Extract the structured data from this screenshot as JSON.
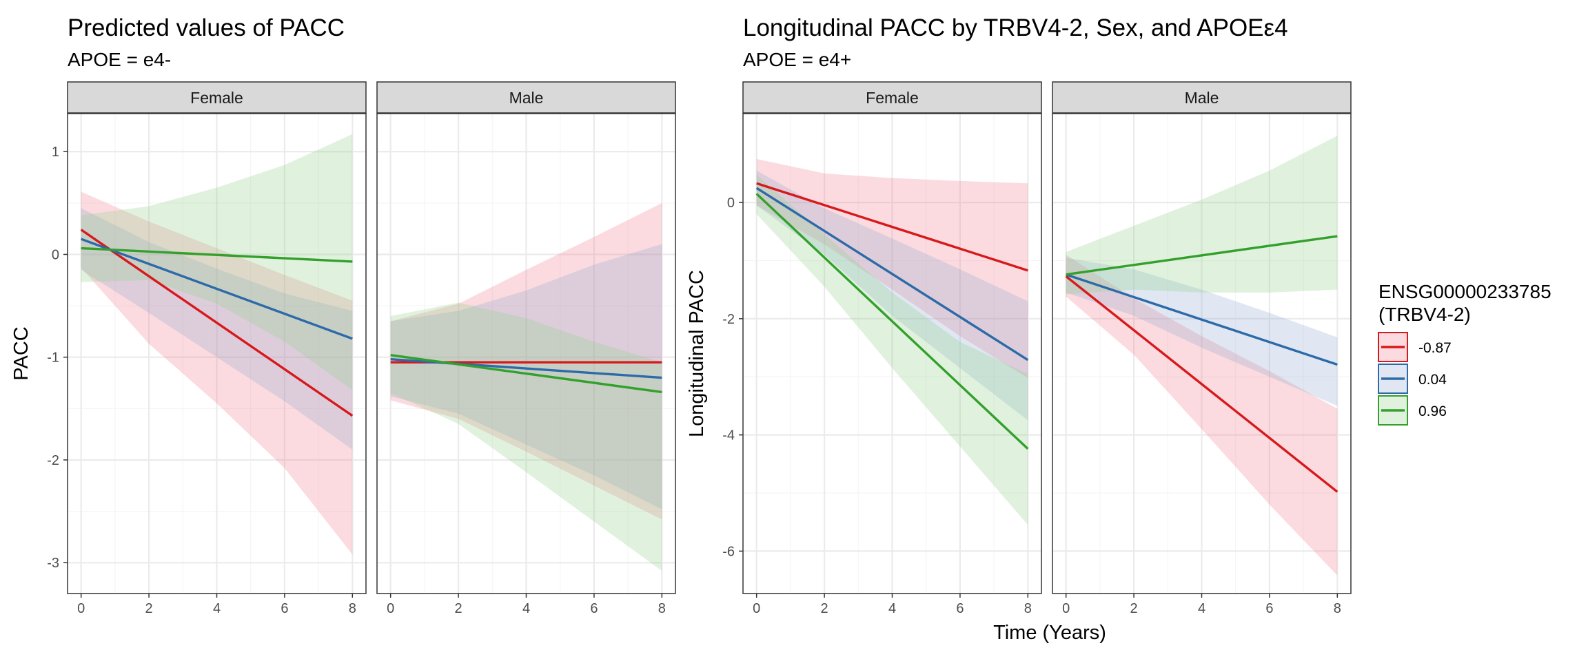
{
  "chart_data": [
    {
      "type": "line",
      "title": "Predicted values of PACC",
      "subtitle": "APOE = e4-",
      "ylabel": "PACC",
      "xlabel": "",
      "xlim": [
        -0.4,
        8.4
      ],
      "ylim": [
        -3.3,
        1.37
      ],
      "x_ticks": [
        0,
        2,
        4,
        6,
        8
      ],
      "y_ticks": [
        1,
        0,
        -1,
        -2,
        -3
      ],
      "grid": true,
      "panels": [
        {
          "label": "Female",
          "series": [
            {
              "name": "-0.87",
              "x": [
                0,
                8
              ],
              "y": [
                0.24,
                -1.57
              ],
              "band_x": [
                0,
                2,
                4,
                6,
                8
              ],
              "band_upper": [
                0.61,
                0.32,
                0.06,
                -0.2,
                -0.45
              ],
              "band_lower": [
                -0.13,
                -0.87,
                -1.45,
                -2.08,
                -2.92
              ]
            },
            {
              "name": "0.04",
              "x": [
                0,
                8
              ],
              "y": [
                0.15,
                -0.82
              ],
              "band_x": [
                0,
                2,
                4,
                6,
                8
              ],
              "band_upper": [
                0.45,
                0.12,
                -0.14,
                -0.38,
                -0.55
              ],
              "band_lower": [
                -0.15,
                -0.57,
                -1.0,
                -1.43,
                -1.9
              ]
            },
            {
              "name": "0.96",
              "x": [
                0,
                8
              ],
              "y": [
                0.06,
                -0.07
              ],
              "band_x": [
                0,
                2,
                4,
                6,
                8
              ],
              "band_upper": [
                0.38,
                0.47,
                0.65,
                0.87,
                1.17
              ],
              "band_lower": [
                -0.27,
                -0.25,
                -0.48,
                -0.85,
                -1.32
              ]
            }
          ]
        },
        {
          "label": "Male",
          "series": [
            {
              "name": "-0.87",
              "x": [
                0,
                8
              ],
              "y": [
                -1.05,
                -1.05
              ],
              "band_x": [
                0,
                2,
                4,
                6,
                8
              ],
              "band_upper": [
                -0.65,
                -0.48,
                -0.15,
                0.17,
                0.5
              ],
              "band_lower": [
                -1.42,
                -1.6,
                -1.92,
                -2.25,
                -2.58
              ]
            },
            {
              "name": "0.04",
              "x": [
                0,
                8
              ],
              "y": [
                -1.02,
                -1.2
              ],
              "band_x": [
                0,
                2,
                4,
                6,
                8
              ],
              "band_upper": [
                -0.65,
                -0.55,
                -0.35,
                -0.1,
                0.1
              ],
              "band_lower": [
                -1.38,
                -1.55,
                -1.85,
                -2.15,
                -2.48
              ]
            },
            {
              "name": "0.96",
              "x": [
                0,
                8
              ],
              "y": [
                -0.98,
                -1.34
              ],
              "band_x": [
                0,
                2,
                4,
                6,
                8
              ],
              "band_upper": [
                -0.6,
                -0.47,
                -0.62,
                -0.85,
                -1.05
              ],
              "band_lower": [
                -1.35,
                -1.65,
                -2.12,
                -2.6,
                -3.08
              ]
            }
          ]
        }
      ]
    },
    {
      "type": "line",
      "title": "Longitudinal PACC by TRBV4-2, Sex, and APOEε4",
      "subtitle": "APOE = e4+",
      "ylabel": "Longitudinal PACC",
      "xlabel": "Time (Years)",
      "xlim": [
        -0.4,
        8.4
      ],
      "ylim": [
        -6.73,
        1.53
      ],
      "x_ticks": [
        0,
        2,
        4,
        6,
        8
      ],
      "y_ticks": [
        0,
        -2,
        -4,
        -6
      ],
      "grid": true,
      "panels": [
        {
          "label": "Female",
          "series": [
            {
              "name": "-0.87",
              "x": [
                0,
                8
              ],
              "y": [
                0.33,
                -1.17
              ],
              "band_x": [
                0,
                2,
                4,
                6,
                8
              ],
              "band_upper": [
                0.75,
                0.5,
                0.42,
                0.37,
                0.33
              ],
              "band_lower": [
                -0.05,
                -0.72,
                -1.5,
                -2.3,
                -3.02
              ]
            },
            {
              "name": "0.04",
              "x": [
                0,
                8
              ],
              "y": [
                0.25,
                -2.71
              ],
              "band_x": [
                0,
                2,
                4,
                6,
                8
              ],
              "band_upper": [
                0.55,
                -0.1,
                -0.62,
                -1.15,
                -1.7
              ],
              "band_lower": [
                -0.05,
                -0.9,
                -1.95,
                -2.85,
                -3.75
              ]
            },
            {
              "name": "0.96",
              "x": [
                0,
                8
              ],
              "y": [
                0.15,
                -4.24
              ],
              "band_x": [
                0,
                2,
                4,
                6,
                8
              ],
              "band_upper": [
                0.48,
                -0.55,
                -1.55,
                -2.4,
                -2.95
              ],
              "band_lower": [
                -0.2,
                -1.45,
                -2.85,
                -4.2,
                -5.55
              ]
            }
          ]
        },
        {
          "label": "Male",
          "series": [
            {
              "name": "-0.87",
              "x": [
                0,
                8
              ],
              "y": [
                -1.27,
                -4.98
              ],
              "band_x": [
                0,
                2,
                4,
                6,
                8
              ],
              "band_upper": [
                -0.9,
                -1.65,
                -2.3,
                -2.9,
                -3.55
              ],
              "band_lower": [
                -1.62,
                -2.62,
                -3.9,
                -5.2,
                -6.42
              ]
            },
            {
              "name": "0.04",
              "x": [
                0,
                8
              ],
              "y": [
                -1.24,
                -2.79
              ],
              "band_x": [
                0,
                2,
                4,
                6,
                8
              ],
              "band_upper": [
                -0.95,
                -1.15,
                -1.5,
                -1.9,
                -2.32
              ],
              "band_lower": [
                -1.55,
                -1.95,
                -2.5,
                -3.0,
                -3.5
              ]
            },
            {
              "name": "0.96",
              "x": [
                0,
                8
              ],
              "y": [
                -1.24,
                -0.58
              ],
              "band_x": [
                0,
                2,
                4,
                6,
                8
              ],
              "band_upper": [
                -0.85,
                -0.4,
                0.05,
                0.55,
                1.15
              ],
              "band_lower": [
                -1.58,
                -1.5,
                -1.55,
                -1.55,
                -1.5
              ]
            }
          ]
        }
      ]
    }
  ],
  "legend": {
    "title_line1": "ENSG00000233785",
    "title_line2": "(TRBV4-2)",
    "placement": "right",
    "items": [
      {
        "label": "-0.87",
        "color": "#d7191c"
      },
      {
        "label": "0.04",
        "color": "#2c6aa8"
      },
      {
        "label": "0.96",
        "color": "#33a02c"
      }
    ]
  },
  "colors": {
    "series": [
      "#d7191c",
      "#2c6aa8",
      "#33a02c"
    ],
    "band_fills": [
      "#f07f8d",
      "#8fa9cf",
      "#8fd08a"
    ],
    "strip_fill": "#d9d9d9",
    "grid_major": "#ebebeb",
    "grid_minor": "#f5f5f5",
    "panel_border": "#333333"
  }
}
